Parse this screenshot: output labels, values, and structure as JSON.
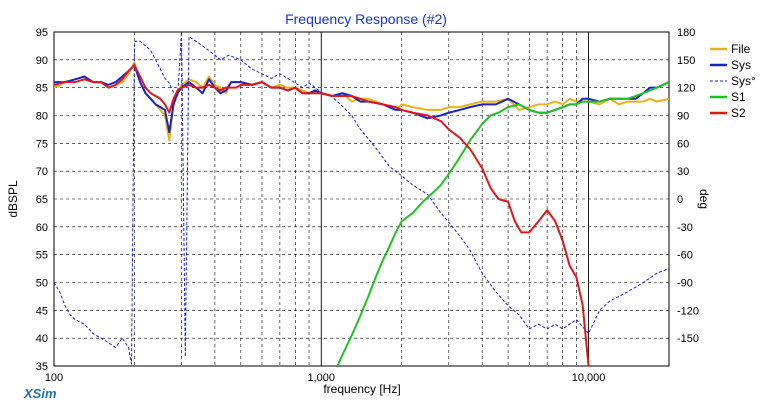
{
  "brand": "XSim",
  "chart_data": {
    "type": "line",
    "title": "Frequency Response (#2)",
    "xlabel": "frequency [Hz]",
    "ylabel": "dBSPL",
    "y2label": "deg",
    "xscale": "log",
    "xlim": [
      100,
      20000
    ],
    "ylim": [
      35,
      95
    ],
    "y2lim": [
      -180,
      180
    ],
    "x_tick_labels": [
      "100",
      "1,000",
      "10,000"
    ],
    "y_tick_labels": [
      "95",
      "90",
      "85",
      "80",
      "75",
      "70",
      "65",
      "60",
      "55",
      "50",
      "45",
      "40",
      "35"
    ],
    "y2_tick_labels": [
      "180",
      "150",
      "120",
      "90",
      "60",
      "30",
      "0",
      "-30",
      "-60",
      "-90",
      "-120",
      "-150"
    ],
    "grid": true,
    "legend_position": "top-right outside",
    "series": [
      {
        "name": "File",
        "color": "#e8b21a",
        "axis": "left",
        "dash": "solid",
        "x": [
          100,
          110,
          120,
          130,
          140,
          150,
          160,
          170,
          180,
          190,
          200,
          210,
          220,
          230,
          240,
          250,
          260,
          270,
          280,
          290,
          300,
          320,
          340,
          360,
          380,
          400,
          420,
          440,
          460,
          480,
          500,
          550,
          600,
          650,
          700,
          750,
          800,
          850,
          900,
          950,
          1000,
          1100,
          1200,
          1300,
          1400,
          1500,
          1700,
          1900,
          2000,
          2200,
          2500,
          2800,
          3000,
          3300,
          3600,
          4000,
          4500,
          5000,
          5500,
          6000,
          6500,
          7000,
          7500,
          8000,
          8500,
          9000,
          9500,
          10000,
          11000,
          12000,
          13000,
          14000,
          15000,
          16000,
          17000,
          18000,
          20000
        ],
        "y": [
          85,
          86,
          86.5,
          87,
          86,
          86,
          85,
          85.5,
          86,
          87.5,
          89.5,
          86,
          84,
          83,
          82,
          81,
          80,
          75.5,
          82,
          84,
          85.5,
          86.5,
          86,
          85,
          87,
          85.5,
          85,
          84,
          86,
          86,
          86,
          85.5,
          86,
          85,
          85.5,
          85,
          85,
          84.5,
          84,
          84.5,
          84,
          83.5,
          84,
          82.5,
          83,
          83,
          82,
          81,
          82,
          81.5,
          81,
          81,
          81.5,
          81.5,
          82,
          82.5,
          82.5,
          83,
          81,
          81.5,
          82,
          82,
          82.5,
          82,
          83,
          82.5,
          82.5,
          82.5,
          82,
          83,
          82,
          82.5,
          82.5,
          82.5,
          83,
          82.5,
          83
        ]
      },
      {
        "name": "Sys",
        "color": "#1a22c8",
        "axis": "left",
        "dash": "solid",
        "x": [
          100,
          110,
          120,
          130,
          140,
          150,
          160,
          170,
          180,
          190,
          200,
          210,
          220,
          230,
          240,
          250,
          260,
          270,
          280,
          290,
          300,
          320,
          340,
          360,
          380,
          400,
          420,
          440,
          460,
          480,
          500,
          550,
          600,
          650,
          700,
          750,
          800,
          850,
          900,
          950,
          1000,
          1100,
          1200,
          1300,
          1400,
          1500,
          1700,
          1900,
          2000,
          2200,
          2500,
          2800,
          3000,
          3300,
          3600,
          4000,
          4500,
          5000,
          5500,
          6000,
          6500,
          7000,
          7500,
          8000,
          8500,
          9000,
          9500,
          10000,
          11000,
          12000,
          13000,
          14000,
          15000,
          16000,
          17000,
          18000,
          20000
        ],
        "y": [
          86,
          86,
          86.5,
          87,
          86,
          86,
          85.5,
          86,
          87,
          88,
          89,
          86,
          84,
          83,
          82,
          81.5,
          81,
          77,
          82,
          84,
          85,
          86,
          85,
          84,
          86.5,
          85,
          84,
          84.5,
          86,
          86,
          86,
          85.5,
          86,
          85,
          85,
          84.5,
          85,
          84,
          84,
          84.5,
          84,
          83.5,
          84,
          83.5,
          82.5,
          82.5,
          82,
          81,
          81,
          80.5,
          79.5,
          80,
          80.5,
          81,
          81.5,
          82,
          82,
          83,
          82,
          81,
          80.5,
          80.5,
          81,
          81.5,
          82,
          82,
          83,
          83,
          82.5,
          83,
          83,
          83,
          83,
          84,
          85,
          85,
          86
        ]
      },
      {
        "name": "Sys°",
        "color": "#1a22c8",
        "axis": "right",
        "dash": "dashed",
        "x": [
          100,
          105,
          110,
          115,
          120,
          130,
          140,
          150,
          160,
          170,
          180,
          190,
          195,
          200,
          210,
          220,
          230,
          240,
          250,
          260,
          270,
          280,
          290,
          300,
          310,
          320,
          340,
          360,
          380,
          400,
          420,
          450,
          500,
          550,
          600,
          650,
          700,
          750,
          800,
          850,
          900,
          950,
          1000,
          1100,
          1200,
          1300,
          1400,
          1500,
          1600,
          1800,
          2000,
          2200,
          2500,
          2800,
          3000,
          3300,
          3600,
          4000,
          4500,
          5000,
          5500,
          6000,
          6500,
          7000,
          7500,
          8000,
          9000,
          10000,
          11000,
          12000,
          13000,
          14000,
          15000,
          16000,
          17000,
          18000,
          20000
        ],
        "y": [
          -90,
          -100,
          -115,
          -125,
          -130,
          -135,
          -145,
          -150,
          -155,
          -160,
          -150,
          -160,
          -178,
          170,
          170,
          165,
          160,
          150,
          140,
          130,
          125,
          115,
          110,
          180,
          -170,
          175,
          170,
          165,
          160,
          155,
          150,
          155,
          150,
          140,
          135,
          130,
          135,
          130,
          125,
          120,
          125,
          120,
          115,
          110,
          100,
          90,
          75,
          65,
          55,
          35,
          25,
          15,
          5,
          -15,
          -25,
          -40,
          -55,
          -80,
          -100,
          -115,
          -125,
          -140,
          -135,
          -140,
          -135,
          -140,
          -130,
          -145,
          -120,
          -110,
          -105,
          -100,
          -95,
          -90,
          -85,
          -80,
          -75
        ]
      },
      {
        "name": "S1",
        "color": "#22c022",
        "axis": "left",
        "dash": "solid",
        "x": [
          1150,
          1200,
          1300,
          1400,
          1500,
          1600,
          1700,
          1800,
          1900,
          2000,
          2200,
          2400,
          2600,
          2800,
          3000,
          3200,
          3400,
          3600,
          3800,
          4000,
          4300,
          4600,
          5000,
          5500,
          6000,
          6500,
          7000,
          7500,
          8000,
          8500,
          9000,
          9500,
          10000,
          11000,
          12000,
          13000,
          14000,
          15000,
          16000,
          17000,
          18000,
          20000
        ],
        "y": [
          35,
          37,
          40.5,
          44,
          47.5,
          51,
          54,
          56.5,
          59,
          61,
          62.5,
          64.5,
          66,
          67.5,
          69.5,
          71.5,
          73.5,
          75.5,
          77,
          78.5,
          80,
          80.5,
          81.5,
          82,
          81,
          80.5,
          80.5,
          81,
          81.5,
          82,
          82,
          82.5,
          82.5,
          82.5,
          83,
          83,
          83,
          83.5,
          84,
          84.5,
          85,
          86
        ]
      },
      {
        "name": "S2",
        "color": "#e01818",
        "axis": "left",
        "dash": "solid",
        "x": [
          100,
          110,
          120,
          130,
          140,
          150,
          160,
          170,
          180,
          190,
          200,
          210,
          220,
          230,
          240,
          250,
          260,
          270,
          280,
          290,
          300,
          320,
          340,
          360,
          380,
          400,
          420,
          440,
          460,
          480,
          500,
          550,
          600,
          650,
          700,
          750,
          800,
          850,
          900,
          950,
          1000,
          1100,
          1200,
          1300,
          1400,
          1500,
          1700,
          1900,
          2000,
          2200,
          2500,
          2800,
          3000,
          3300,
          3600,
          4000,
          4300,
          4600,
          5000,
          5300,
          5600,
          6000,
          6500,
          7000,
          7500,
          8000,
          8500,
          9000,
          9500,
          10000
        ],
        "y": [
          85.5,
          86,
          86,
          86.5,
          86,
          86,
          85,
          85.5,
          86.5,
          88,
          89,
          87,
          85,
          84,
          83.5,
          83,
          82,
          80.5,
          83,
          84.5,
          85,
          85.5,
          85,
          85,
          85.5,
          85,
          84.5,
          85,
          85,
          85,
          85.5,
          85.5,
          86,
          85,
          85,
          84.5,
          85,
          84,
          84,
          84,
          84,
          83.5,
          83.5,
          83.5,
          83,
          82.5,
          82,
          81.5,
          81,
          80.5,
          80,
          79,
          77.5,
          76,
          74,
          70.5,
          67,
          65,
          64.5,
          61,
          59,
          59,
          61,
          63,
          61,
          57.5,
          53,
          51,
          46,
          35
        ]
      }
    ]
  }
}
